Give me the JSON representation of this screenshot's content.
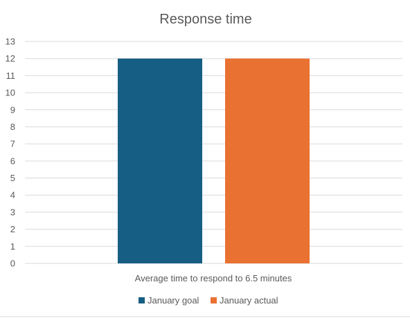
{
  "chart_data": {
    "type": "bar",
    "title": "Response time",
    "categories": [
      "Average time to respond to 6.5 minutes"
    ],
    "series": [
      {
        "name": "January goal",
        "values": [
          12
        ],
        "color": "#165e83"
      },
      {
        "name": "January actual",
        "values": [
          12
        ],
        "color": "#e97132"
      }
    ],
    "xlabel": "",
    "ylabel": "",
    "ylim": [
      0,
      13
    ],
    "yticks": [
      0,
      1,
      2,
      3,
      4,
      5,
      6,
      7,
      8,
      9,
      10,
      11,
      12,
      13
    ],
    "grid": true,
    "legend": "bottom"
  }
}
